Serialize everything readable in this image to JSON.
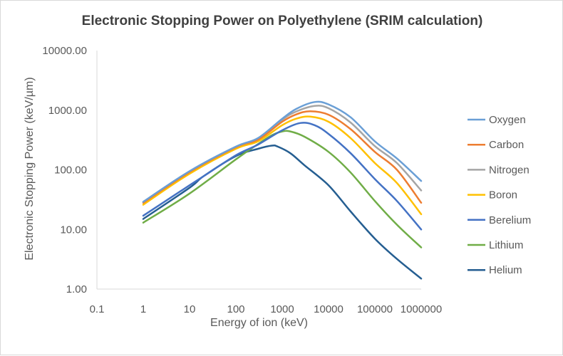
{
  "chart_data": {
    "type": "line",
    "title": "Electronic Stopping Power on Polyethylene (SRIM calculation)",
    "xlabel": "Energy of ion (keV)",
    "ylabel": "Electronic Stopping Power (keV/µm)",
    "x_scale": "log",
    "y_scale": "log",
    "xlim": [
      0.1,
      1000000
    ],
    "ylim": [
      1,
      10000
    ],
    "x_ticks": [
      "0.1",
      "1",
      "10",
      "100",
      "1000",
      "10000",
      "100000",
      "1000000"
    ],
    "y_ticks": [
      "1.00",
      "10.00",
      "100.00",
      "1000.00",
      "10000.00"
    ],
    "grid": false,
    "legend_position": "right",
    "series": [
      {
        "name": "Oxygen",
        "color": "#6a9fd6",
        "x": [
          1,
          10,
          100,
          300,
          1000,
          2000,
          5000,
          10000,
          30000,
          100000,
          300000,
          1000000
        ],
        "y": [
          29,
          95,
          245,
          340,
          720,
          1050,
          1370,
          1250,
          760,
          300,
          155,
          65
        ]
      },
      {
        "name": "Carbon",
        "color": "#ed7d31",
        "x": [
          1,
          10,
          100,
          300,
          1000,
          2000,
          4000,
          10000,
          30000,
          100000,
          300000,
          1000000
        ],
        "y": [
          28,
          92,
          240,
          320,
          640,
          850,
          960,
          840,
          480,
          200,
          100,
          28
        ]
      },
      {
        "name": "Nitrogen",
        "color": "#a5a5a5",
        "x": [
          1,
          10,
          100,
          300,
          1000,
          2000,
          5000,
          10000,
          30000,
          100000,
          300000,
          1000000
        ],
        "y": [
          29,
          94,
          242,
          330,
          690,
          950,
          1180,
          1080,
          620,
          250,
          130,
          45
        ]
      },
      {
        "name": "Boron",
        "color": "#ffc000",
        "x": [
          1,
          10,
          100,
          300,
          1000,
          2000,
          4000,
          10000,
          30000,
          100000,
          300000,
          1000000
        ],
        "y": [
          26,
          86,
          225,
          300,
          560,
          720,
          780,
          640,
          340,
          130,
          60,
          18
        ]
      },
      {
        "name": "Berelium",
        "color": "#4472c4",
        "x": [
          1,
          10,
          20,
          100,
          300,
          1000,
          2500,
          5000,
          10000,
          30000,
          100000,
          300000,
          1000000
        ],
        "y": [
          17,
          55,
          78,
          175,
          265,
          460,
          610,
          560,
          400,
          190,
          70,
          30,
          10
        ]
      },
      {
        "name": "Lithium",
        "color": "#70ad47",
        "x": [
          1,
          10,
          100,
          300,
          600,
          1000,
          1500,
          3000,
          10000,
          30000,
          100000,
          300000,
          1000000
        ],
        "y": [
          13,
          40,
          150,
          270,
          380,
          440,
          440,
          360,
          200,
          90,
          30,
          12,
          5
        ]
      },
      {
        "name": "Helium",
        "color": "#255e91",
        "x": [
          1,
          10,
          20,
          100,
          300,
          600,
          800,
          1500,
          3000,
          10000,
          30000,
          100000,
          300000,
          1000000
        ],
        "y": [
          15,
          50,
          78,
          170,
          225,
          255,
          245,
          190,
          120,
          55,
          20,
          7,
          3.2,
          1.5
        ]
      }
    ]
  }
}
